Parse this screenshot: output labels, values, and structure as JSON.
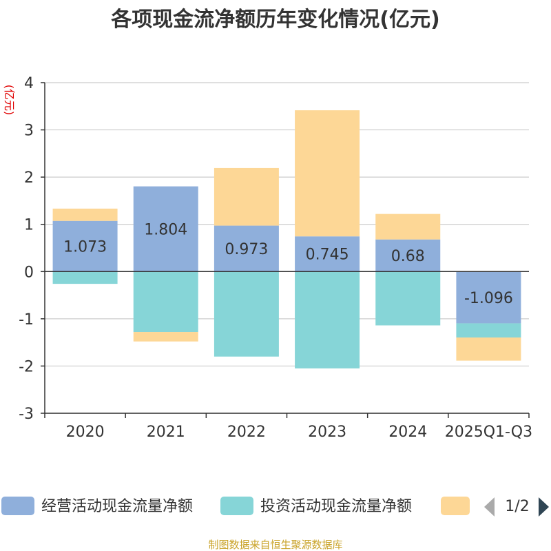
{
  "chart_data": {
    "type": "bar",
    "stacked": true,
    "title": "各项现金流净额历年变化情况(亿元)",
    "ylabel": "(亿元)",
    "xlabel": "",
    "categories": [
      "2020",
      "2021",
      "2022",
      "2023",
      "2024",
      "2025Q1-Q3"
    ],
    "ylim": [
      -3,
      4
    ],
    "yticks": [
      "4",
      "3",
      "2",
      "1",
      "0",
      "-1",
      "-2",
      "-3"
    ],
    "ytick_values": [
      4,
      3,
      2,
      1,
      0,
      -1,
      -2,
      -3
    ],
    "grid": true,
    "series": [
      {
        "name": "经营活动现金流量净额",
        "color": "#8fafdb",
        "values": [
          1.073,
          1.804,
          0.973,
          0.745,
          0.68,
          -1.096
        ],
        "labels": [
          "1.073",
          "1.804",
          "0.973",
          "0.745",
          "0.68",
          "-1.096"
        ]
      },
      {
        "name": "投资活动现金流量净额",
        "color": "#86d5d7",
        "values": [
          -0.26,
          -1.28,
          -1.8,
          -2.05,
          -1.14,
          -0.3
        ]
      },
      {
        "name": "",
        "color": "#fdd796",
        "values": [
          0.26,
          -0.2,
          1.22,
          2.67,
          0.54,
          -0.49
        ]
      }
    ],
    "legend": {
      "position": "bottom",
      "items": [
        "经营活动现金流量净额",
        "投资活动现金流量净额",
        ""
      ],
      "page": "1/2"
    },
    "source": "制图数据来自恒生聚源数据库"
  }
}
